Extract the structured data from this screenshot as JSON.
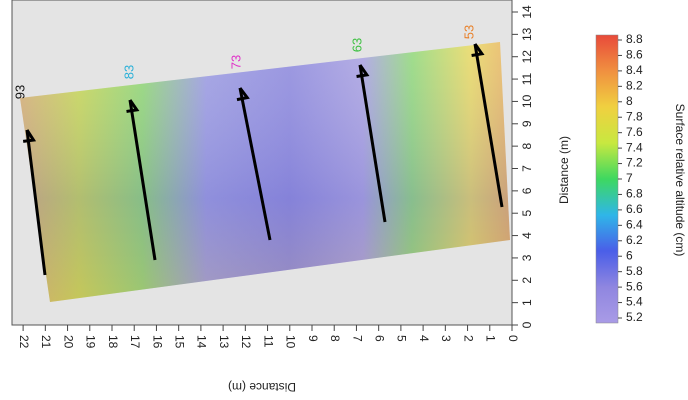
{
  "chart_data": {
    "type": "surface-map",
    "xlabel": "Distance (m)",
    "ylabel": "Distance (m)",
    "xlim": [
      22.5,
      0
    ],
    "xticks": [
      22,
      21,
      20,
      19,
      18,
      17,
      16,
      15,
      14,
      13,
      12,
      11,
      10,
      9,
      8,
      7,
      6,
      5,
      4,
      3,
      2,
      1,
      0
    ],
    "ylim": [
      0,
      14
    ],
    "yticks": [
      0,
      1,
      2,
      3,
      4,
      5,
      6,
      7,
      8,
      9,
      10,
      11,
      12,
      13,
      14
    ],
    "colorbar": {
      "label": "Surface relative altitude (cm)",
      "clim": [
        5.2,
        8.8
      ],
      "ticks": [
        5.2,
        5.4,
        5.6,
        5.8,
        6,
        6.2,
        6.4,
        6.6,
        6.8,
        7,
        7.2,
        7.4,
        7.6,
        7.8,
        8,
        8.2,
        8.4,
        8.6,
        8.8
      ],
      "colormap": [
        "#a99be6",
        "#8f86e0",
        "#4a5ee8",
        "#2fb6e8",
        "#3ed860",
        "#c8e840",
        "#f0d040",
        "#f09040",
        "#e84a3a"
      ]
    },
    "annotations": [
      {
        "text": "93",
        "color": "#111111"
      },
      {
        "text": "83",
        "color": "#2ab0d8"
      },
      {
        "text": "73",
        "color": "#e030c8"
      },
      {
        "text": "63",
        "color": "#3cc040"
      },
      {
        "text": "53",
        "color": "#e8802a"
      }
    ]
  }
}
